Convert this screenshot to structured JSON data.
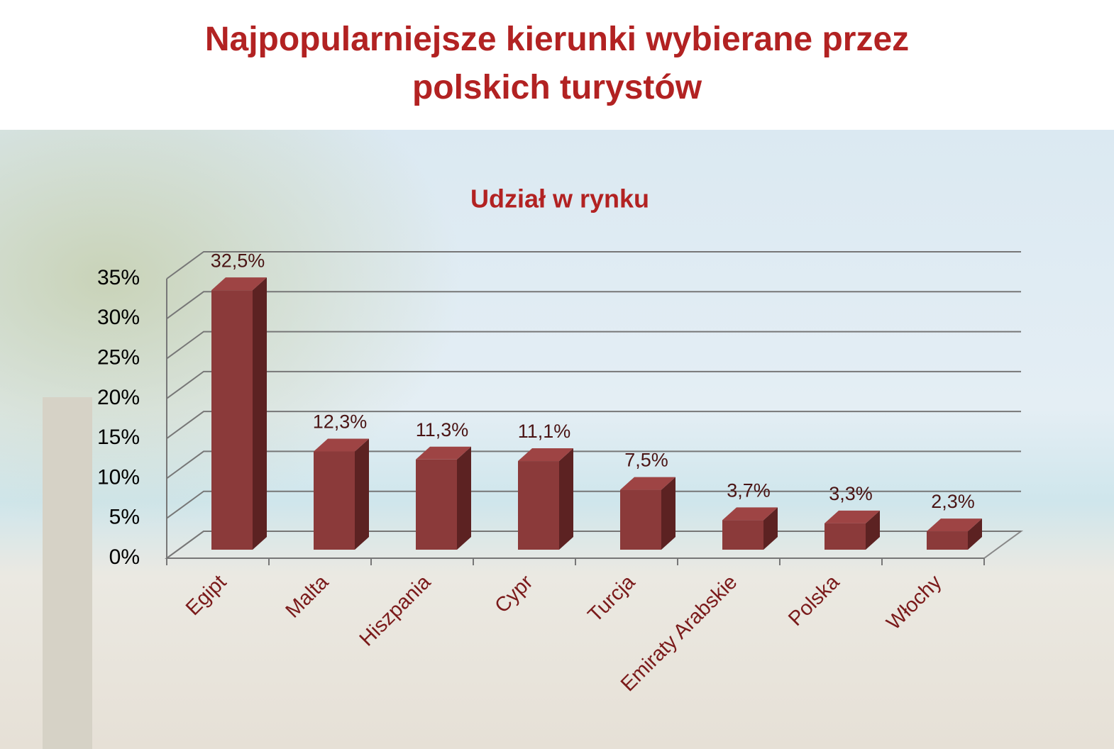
{
  "chart_data": {
    "type": "bar3d",
    "title": "Najpopularniejsze kierunki wybierane przez polskich turystów",
    "subtitle": "Udział w rynku",
    "categories": [
      "Egipt",
      "Malta",
      "Hiszpania",
      "Cypr",
      "Turcja",
      "Emiraty Arabskie",
      "Polska",
      "Włochy"
    ],
    "values": [
      32.5,
      12.3,
      11.3,
      11.1,
      7.5,
      3.7,
      3.3,
      2.3
    ],
    "value_labels": [
      "32,5%",
      "12,3%",
      "11,3%",
      "11,1%",
      "7,5%",
      "3,7%",
      "3,3%",
      "2,3%"
    ],
    "color": "#8b3a3a",
    "ylim": [
      0,
      35
    ],
    "yticks": [
      {
        "value": 0,
        "label": "0%"
      },
      {
        "value": 5,
        "label": "5%"
      },
      {
        "value": 10,
        "label": "10%"
      },
      {
        "value": 15,
        "label": "15%"
      },
      {
        "value": 20,
        "label": "20%"
      },
      {
        "value": 25,
        "label": "25%"
      },
      {
        "value": 30,
        "label": "30%"
      },
      {
        "value": 35,
        "label": "35%"
      }
    ],
    "grid": true
  }
}
